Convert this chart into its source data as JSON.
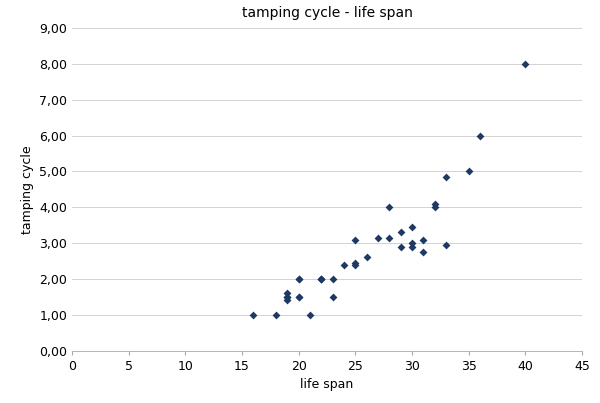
{
  "title": "tamping cycle - life span",
  "xlabel": "life span",
  "ylabel": "tamping cycle",
  "xlim": [
    0,
    45
  ],
  "ylim": [
    0,
    9
  ],
  "xticks": [
    0,
    5,
    10,
    15,
    20,
    25,
    30,
    35,
    40,
    45
  ],
  "yticks": [
    0.0,
    1.0,
    2.0,
    3.0,
    4.0,
    5.0,
    6.0,
    7.0,
    8.0,
    9.0
  ],
  "ytick_labels": [
    "0,00",
    "1,00",
    "2,00",
    "3,00",
    "4,00",
    "5,00",
    "6,00",
    "7,00",
    "8,00",
    "9,00"
  ],
  "marker_color": "#1F3864",
  "marker": "D",
  "marker_size": 4,
  "x_data": [
    16,
    18,
    19,
    19,
    19,
    19,
    20,
    20,
    20,
    20,
    21,
    22,
    22,
    22,
    23,
    23,
    24,
    25,
    25,
    25,
    26,
    27,
    28,
    28,
    29,
    29,
    30,
    30,
    30,
    31,
    31,
    32,
    32,
    33,
    33,
    35,
    36,
    40
  ],
  "y_data": [
    1.0,
    1.0,
    1.4,
    1.5,
    1.5,
    1.6,
    1.5,
    1.5,
    2.0,
    2.0,
    1.0,
    2.0,
    2.0,
    2.0,
    1.5,
    2.0,
    2.4,
    2.4,
    3.1,
    2.45,
    2.6,
    3.15,
    4.0,
    3.15,
    2.9,
    3.3,
    3.0,
    2.9,
    3.45,
    2.75,
    3.1,
    4.0,
    4.1,
    4.85,
    2.95,
    5.0,
    6.0,
    8.0
  ],
  "background_color": "#ffffff",
  "grid_color": "#cccccc",
  "title_fontsize": 10,
  "label_fontsize": 9,
  "tick_fontsize": 9
}
